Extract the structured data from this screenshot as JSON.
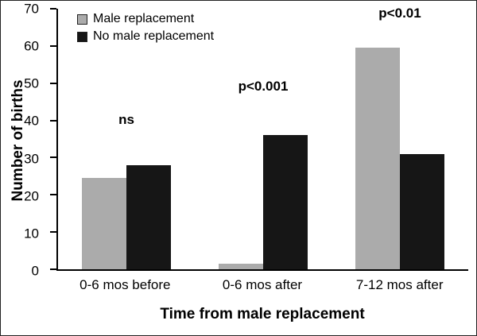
{
  "chart_data": {
    "type": "bar",
    "title": "",
    "xlabel": "Time from male replacement",
    "ylabel": "Number of births",
    "categories": [
      "0-6 mos before",
      "0-6 mos after",
      "7-12 mos after"
    ],
    "series": [
      {
        "name": "Male replacement",
        "color": "#ababab",
        "values": [
          24.5,
          1.5,
          59.5
        ]
      },
      {
        "name": "No male replacement",
        "color": "#161616",
        "values": [
          28,
          36,
          31
        ]
      }
    ],
    "annotations": [
      {
        "label": "ns",
        "category_index": 0,
        "y": 38
      },
      {
        "label": "p<0.001",
        "category_index": 1,
        "y": 47
      },
      {
        "label": "p<0.01",
        "category_index": 2,
        "y": 66.5
      }
    ],
    "ylim": [
      0,
      70
    ],
    "yticks": [
      0,
      10,
      20,
      30,
      40,
      50,
      60,
      70
    ],
    "legend_position": "top-left",
    "grid": false
  }
}
